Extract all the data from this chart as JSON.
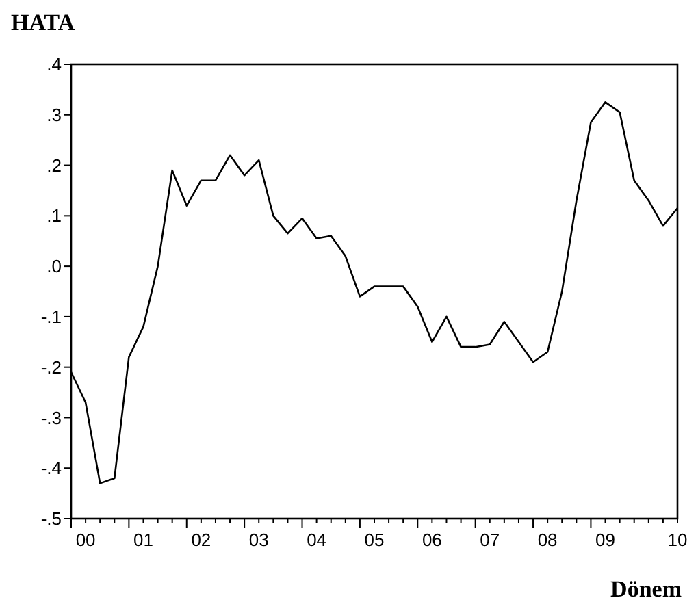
{
  "chart_data": {
    "type": "line",
    "title": "HATA",
    "xlabel": "Dönem",
    "categories": [
      null,
      "00",
      null,
      null,
      null,
      "01",
      null,
      null,
      null,
      "02",
      null,
      null,
      null,
      "03",
      null,
      null,
      null,
      "04",
      null,
      null,
      null,
      "05",
      null,
      null,
      null,
      "06",
      null,
      null,
      null,
      "07",
      null,
      null,
      null,
      "08",
      null,
      null,
      null,
      "09",
      null,
      null,
      null,
      null,
      "10"
    ],
    "series": [
      {
        "color": "#000000",
        "values": [
          -0.21,
          -0.27,
          -0.43,
          -0.42,
          -0.18,
          -0.12,
          0.0,
          0.19,
          0.12,
          0.17,
          0.17,
          0.22,
          0.18,
          0.21,
          0.1,
          0.065,
          0.095,
          0.055,
          0.06,
          0.02,
          -0.06,
          -0.04,
          -0.04,
          -0.04,
          -0.08,
          -0.15,
          -0.1,
          -0.16,
          -0.16,
          -0.155,
          -0.11,
          -0.15,
          -0.19,
          -0.17,
          -0.05,
          0.13,
          0.285,
          0.325,
          0.305,
          0.17,
          0.13,
          0.08,
          0.115
        ]
      }
    ],
    "ylim": [
      -0.5,
      0.4
    ],
    "yticks": [
      {
        "value": 0.4,
        "label": ".4"
      },
      {
        "value": 0.3,
        "label": ".3"
      },
      {
        "value": 0.2,
        "label": ".2"
      },
      {
        "value": 0.1,
        "label": ".1"
      },
      {
        "value": 0.0,
        "label": ".0"
      },
      {
        "value": -0.1,
        "label": "-.1"
      },
      {
        "value": -0.2,
        "label": "-.2"
      },
      {
        "value": -0.3,
        "label": "-.3"
      },
      {
        "value": -0.4,
        "label": "-.4"
      },
      {
        "value": -0.5,
        "label": "-.5"
      }
    ],
    "grid": false,
    "marker": "none",
    "line_style": "solid"
  }
}
